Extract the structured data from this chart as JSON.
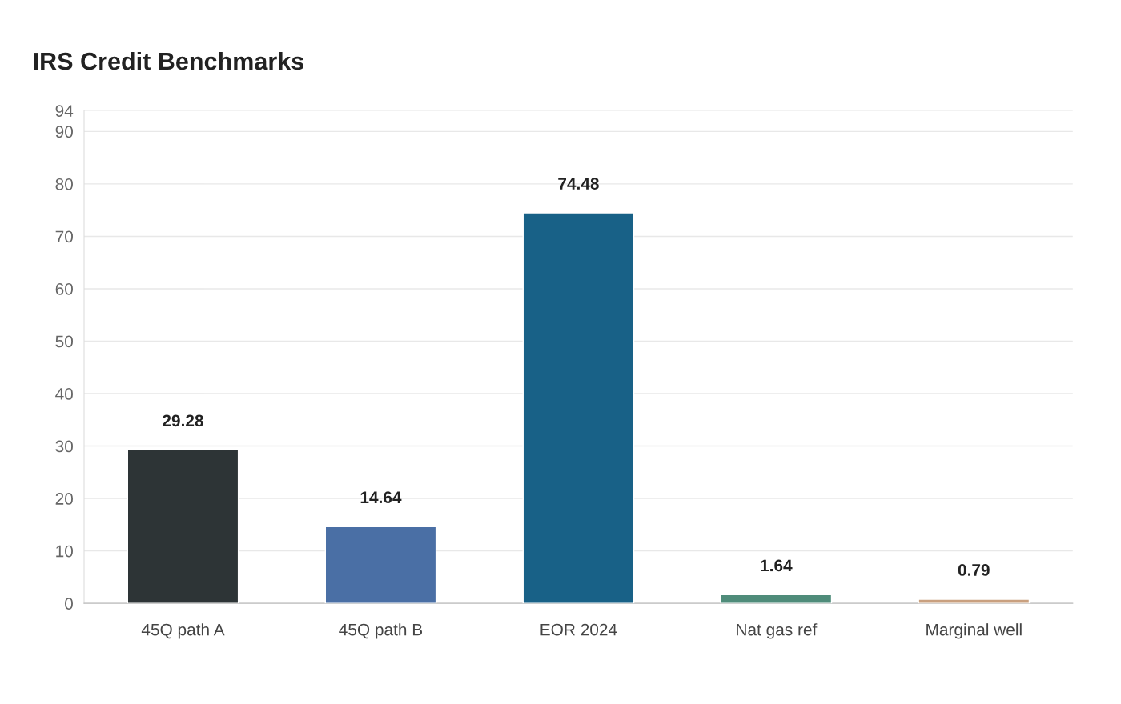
{
  "chart_data": {
    "type": "bar",
    "title": "IRS Credit Benchmarks",
    "categories": [
      "45Q path A",
      "45Q path B",
      "EOR 2024",
      "Nat gas ref",
      "Marginal well"
    ],
    "values": [
      29.28,
      14.64,
      74.48,
      1.64,
      0.79
    ],
    "colors": [
      "#2d3436",
      "#4a6fa5",
      "#186187",
      "#4f8c7a",
      "#c9a07f"
    ],
    "ylim": [
      0,
      94
    ],
    "yticks": [
      0,
      10,
      20,
      30,
      40,
      50,
      60,
      70,
      80,
      90,
      94
    ],
    "grid": "y",
    "data_labels": true
  }
}
